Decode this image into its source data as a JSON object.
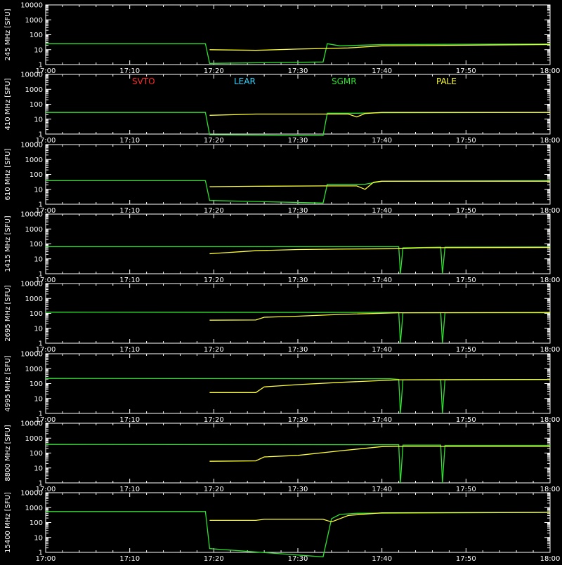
{
  "chart_data": {
    "type": "line",
    "x_unit": "time (UT)",
    "x_ticks": [
      "17:00",
      "17:10",
      "17:20",
      "17:30",
      "17:40",
      "17:50",
      "18:00"
    ],
    "y_scale": "log",
    "y_ticks": [
      "1",
      "10",
      "100",
      "1000",
      "10000"
    ],
    "ylim": [
      1,
      10000
    ],
    "stations": [
      {
        "name": "SVTO",
        "color": "#ff2a2a"
      },
      {
        "name": "LEAR",
        "color": "#33d6ff"
      },
      {
        "name": "SGMR",
        "color": "#2fe02f"
      },
      {
        "name": "PALE",
        "color": "#ffff33"
      }
    ],
    "panels": [
      {
        "ylabel": "245 MHz [SFU]",
        "series": [
          {
            "station": "SGMR",
            "points": [
              [
                "17:00",
                25
              ],
              [
                "17:19",
                25
              ],
              [
                "17:19.5",
                1.2
              ],
              [
                "17:33",
                1.5
              ],
              [
                "17:33.5",
                25
              ],
              [
                "17:35",
                18
              ],
              [
                "17:40",
                22
              ],
              [
                "18:00",
                24
              ]
            ]
          },
          {
            "station": "PALE",
            "points": [
              [
                "17:19.5",
                10
              ],
              [
                "17:25",
                9
              ],
              [
                "17:30",
                11
              ],
              [
                "17:33",
                12
              ],
              [
                "17:36",
                13
              ],
              [
                "17:40",
                18
              ],
              [
                "18:00",
                22
              ]
            ]
          }
        ]
      },
      {
        "ylabel": "410 MHz [SFU]",
        "series": [
          {
            "station": "SGMR",
            "points": [
              [
                "17:00",
                28
              ],
              [
                "17:19",
                28
              ],
              [
                "17:19.5",
                0.9
              ],
              [
                "17:33",
                0.8
              ],
              [
                "17:33.5",
                25
              ],
              [
                "17:37",
                25
              ],
              [
                "17:40",
                27
              ],
              [
                "18:00",
                28
              ]
            ]
          },
          {
            "station": "PALE",
            "points": [
              [
                "17:19.5",
                18
              ],
              [
                "17:25",
                22
              ],
              [
                "17:33",
                22
              ],
              [
                "17:36",
                22
              ],
              [
                "17:37",
                14
              ],
              [
                "17:38",
                24
              ],
              [
                "17:40",
                28
              ],
              [
                "18:00",
                28
              ]
            ]
          }
        ]
      },
      {
        "ylabel": "610 MHz [SFU]",
        "series": [
          {
            "station": "SGMR",
            "points": [
              [
                "17:00",
                38
              ],
              [
                "17:19",
                38
              ],
              [
                "17:19.5",
                1.8
              ],
              [
                "17:33",
                1.2
              ],
              [
                "17:33.5",
                22
              ],
              [
                "17:38",
                22
              ],
              [
                "17:40",
                35
              ],
              [
                "18:00",
                38
              ]
            ]
          },
          {
            "station": "PALE",
            "points": [
              [
                "17:19.5",
                15
              ],
              [
                "17:25",
                16
              ],
              [
                "17:33",
                17
              ],
              [
                "17:37",
                17
              ],
              [
                "17:38",
                10
              ],
              [
                "17:39",
                30
              ],
              [
                "17:40",
                35
              ],
              [
                "18:00",
                35
              ]
            ]
          }
        ]
      },
      {
        "ylabel": "1415 MHz [SFU]",
        "series": [
          {
            "station": "SGMR",
            "points": [
              [
                "17:00",
                65
              ],
              [
                "17:42",
                65
              ],
              [
                "17:42.2",
                1
              ],
              [
                "17:42.5",
                55
              ],
              [
                "17:47",
                60
              ],
              [
                "17:47.2",
                1
              ],
              [
                "17:47.5",
                60
              ],
              [
                "18:00",
                62
              ]
            ]
          },
          {
            "station": "PALE",
            "points": [
              [
                "17:19.5",
                22
              ],
              [
                "17:25",
                35
              ],
              [
                "17:30",
                42
              ],
              [
                "17:35",
                45
              ],
              [
                "17:42",
                48
              ],
              [
                "17:45",
                55
              ],
              [
                "18:00",
                58
              ]
            ]
          }
        ]
      },
      {
        "ylabel": "2695 MHz [SFU]",
        "series": [
          {
            "station": "SGMR",
            "points": [
              [
                "17:00",
                120
              ],
              [
                "17:42",
                115
              ],
              [
                "17:42.2",
                1
              ],
              [
                "17:42.5",
                110
              ],
              [
                "17:47",
                112
              ],
              [
                "17:47.2",
                1
              ],
              [
                "17:47.5",
                110
              ],
              [
                "18:00",
                110
              ]
            ]
          },
          {
            "station": "PALE",
            "points": [
              [
                "17:19.5",
                35
              ],
              [
                "17:25",
                36
              ],
              [
                "17:26",
                55
              ],
              [
                "17:30",
                65
              ],
              [
                "17:35",
                85
              ],
              [
                "17:42",
                110
              ],
              [
                "18:00",
                115
              ]
            ]
          }
        ]
      },
      {
        "ylabel": "4995 MHz [SFU]",
        "series": [
          {
            "station": "SGMR",
            "points": [
              [
                "17:00",
                220
              ],
              [
                "17:41",
                210
              ],
              [
                "17:42",
                190
              ],
              [
                "17:42.2",
                1
              ],
              [
                "17:42.5",
                180
              ],
              [
                "17:47",
                180
              ],
              [
                "17:47.2",
                1
              ],
              [
                "17:47.5",
                180
              ],
              [
                "18:00",
                190
              ]
            ]
          },
          {
            "station": "PALE",
            "points": [
              [
                "17:19.5",
                25
              ],
              [
                "17:25",
                25
              ],
              [
                "17:26",
                60
              ],
              [
                "17:30",
                85
              ],
              [
                "17:35",
                120
              ],
              [
                "17:42",
                180
              ],
              [
                "18:00",
                190
              ]
            ]
          }
        ]
      },
      {
        "ylabel": "8800 MHz [SFU]",
        "series": [
          {
            "station": "SGMR",
            "points": [
              [
                "17:00",
                380
              ],
              [
                "17:42",
                360
              ],
              [
                "17:42.2",
                1
              ],
              [
                "17:42.5",
                340
              ],
              [
                "17:47",
                340
              ],
              [
                "17:47.2",
                1
              ],
              [
                "17:47.5",
                330
              ],
              [
                "18:00",
                330
              ]
            ]
          },
          {
            "station": "PALE",
            "points": [
              [
                "17:19.5",
                28
              ],
              [
                "17:25",
                30
              ],
              [
                "17:26",
                55
              ],
              [
                "17:30",
                70
              ],
              [
                "17:35",
                140
              ],
              [
                "17:40",
                270
              ],
              [
                "17:42",
                280
              ],
              [
                "18:00",
                280
              ]
            ]
          }
        ]
      },
      {
        "ylabel": "15400 MHz [SFU]",
        "series": [
          {
            "station": "SGMR",
            "points": [
              [
                "17:00",
                550
              ],
              [
                "17:19",
                550
              ],
              [
                "17:19.5",
                1.8
              ],
              [
                "17:33",
                0.5
              ],
              [
                "17:34",
                180
              ],
              [
                "17:35",
                350
              ],
              [
                "17:37",
                420
              ],
              [
                "18:00",
                480
              ]
            ]
          },
          {
            "station": "PALE",
            "points": [
              [
                "17:19.5",
                140
              ],
              [
                "17:25",
                140
              ],
              [
                "17:26",
                165
              ],
              [
                "17:33",
                165
              ],
              [
                "17:34",
                110
              ],
              [
                "17:36",
                300
              ],
              [
                "17:40",
                450
              ],
              [
                "18:00",
                480
              ]
            ]
          }
        ]
      }
    ]
  }
}
